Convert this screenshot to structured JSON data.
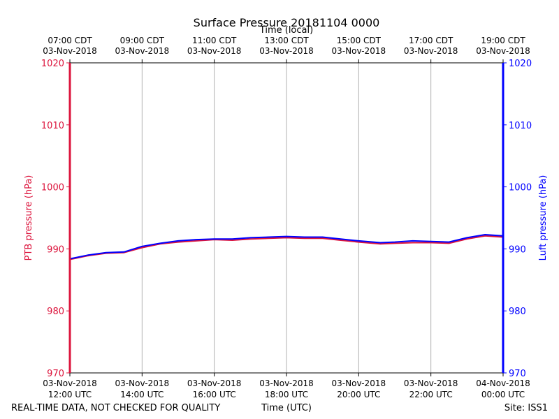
{
  "chart_data": {
    "type": "line",
    "title": "Surface Pressure 20181104 0000",
    "top_xlabel": "Time (local)",
    "xlabel": "Time (UTC)",
    "ylabel_left": "PTB pressure (hPa)",
    "ylabel_right": "Luft pressure (hPa)",
    "footer_left": "REAL-TIME DATA, NOT CHECKED FOR QUALITY",
    "footer_right": "Site: ISS1",
    "ylim": [
      970,
      1020
    ],
    "yticks": [
      970,
      980,
      990,
      1000,
      1010,
      1020
    ],
    "xlim_hours": [
      0,
      12
    ],
    "grid": true,
    "bottom_ticks": [
      {
        "hour": 0,
        "line1": "03-Nov-2018",
        "line2": "12:00 UTC"
      },
      {
        "hour": 2,
        "line1": "03-Nov-2018",
        "line2": "14:00 UTC"
      },
      {
        "hour": 4,
        "line1": "03-Nov-2018",
        "line2": "16:00 UTC"
      },
      {
        "hour": 6,
        "line1": "03-Nov-2018",
        "line2": "18:00 UTC"
      },
      {
        "hour": 8,
        "line1": "03-Nov-2018",
        "line2": "20:00 UTC"
      },
      {
        "hour": 10,
        "line1": "03-Nov-2018",
        "line2": "22:00 UTC"
      },
      {
        "hour": 12,
        "line1": "04-Nov-2018",
        "line2": "00:00 UTC"
      }
    ],
    "top_ticks": [
      {
        "hour": 0,
        "line1": "07:00 CDT",
        "line2": "03-Nov-2018"
      },
      {
        "hour": 2,
        "line1": "09:00 CDT",
        "line2": "03-Nov-2018"
      },
      {
        "hour": 4,
        "line1": "11:00 CDT",
        "line2": "03-Nov-2018"
      },
      {
        "hour": 6,
        "line1": "13:00 CDT",
        "line2": "03-Nov-2018"
      },
      {
        "hour": 8,
        "line1": "15:00 CDT",
        "line2": "03-Nov-2018"
      },
      {
        "hour": 10,
        "line1": "17:00 CDT",
        "line2": "03-Nov-2018"
      },
      {
        "hour": 12,
        "line1": "19:00 CDT",
        "line2": "03-Nov-2018"
      }
    ],
    "series": [
      {
        "name": "PTB pressure",
        "color": "#dc143c",
        "x_hours": [
          0,
          0.5,
          1,
          1.5,
          2,
          2.5,
          3,
          3.5,
          4,
          4.5,
          5,
          5.5,
          6,
          6.5,
          7,
          7.5,
          8,
          8.2,
          8.4,
          8.6,
          9,
          9.5,
          10,
          10.5,
          11,
          11.5,
          12
        ],
        "values": [
          988.3,
          988.9,
          989.3,
          989.4,
          990.2,
          990.8,
          991.1,
          991.3,
          991.5,
          991.4,
          991.6,
          991.7,
          991.8,
          991.7,
          991.7,
          991.4,
          991.1,
          991.0,
          990.9,
          990.8,
          990.9,
          991.0,
          991.0,
          990.9,
          991.6,
          992.1,
          991.9
        ]
      },
      {
        "name": "Luft pressure",
        "color": "#0000ff",
        "x_hours": [
          0,
          0.5,
          1,
          1.5,
          2,
          2.5,
          3,
          3.5,
          4,
          4.5,
          5,
          5.5,
          6,
          6.5,
          7,
          7.5,
          8,
          8.2,
          8.4,
          8.6,
          9,
          9.5,
          10,
          10.5,
          11,
          11.5,
          12
        ],
        "values": [
          988.4,
          989.0,
          989.4,
          989.5,
          990.4,
          990.9,
          991.3,
          991.5,
          991.6,
          991.6,
          991.8,
          991.9,
          992.0,
          991.9,
          991.9,
          991.6,
          991.3,
          991.2,
          991.1,
          991.0,
          991.1,
          991.3,
          991.2,
          991.1,
          991.8,
          992.3,
          992.1
        ]
      }
    ]
  }
}
